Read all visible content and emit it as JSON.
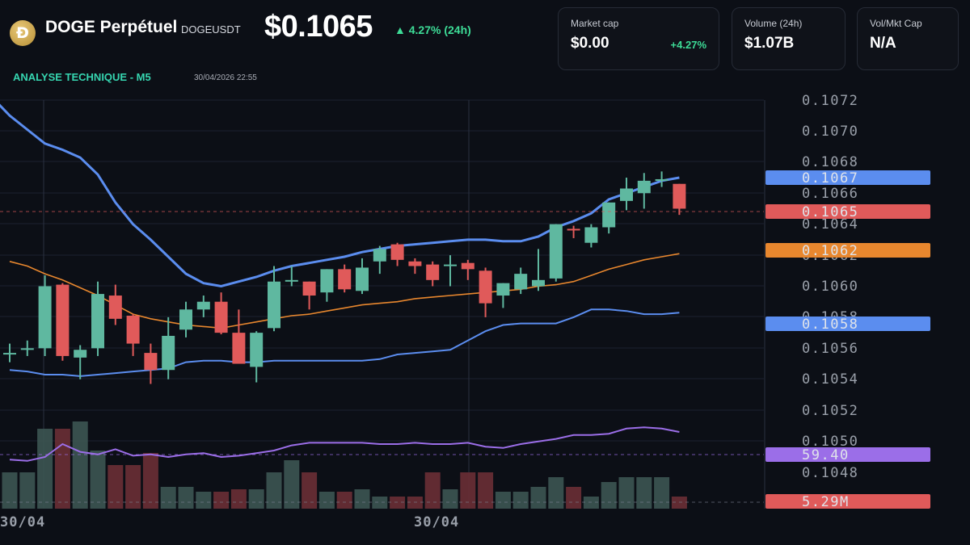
{
  "header": {
    "logo_glyph": "Đ",
    "pair_name": "DOGE Perpétuel",
    "ticker": "DOGEUSDT",
    "price": "$0.1065",
    "change": "▲ 4.27% (24h)"
  },
  "cards": [
    {
      "label": "Market cap",
      "value": "$0.00",
      "delta": "+4.27%"
    },
    {
      "label": "Volume (24h)",
      "value": "$1.07B"
    },
    {
      "label": "Vol/Mkt Cap",
      "value": "N/A"
    }
  ],
  "analysis": {
    "title": "ANALYSE TECHNIQUE - M5",
    "timestamp": "30/04/2026 22:55"
  },
  "colors": {
    "up": "#5fb8a0",
    "down": "#e05a5a",
    "bollinger": "#5b8def",
    "ma": "#e8872e",
    "rsi": "#9b6ee8",
    "accent_green": "#3ddc97"
  },
  "axis": {
    "price_ticks": [
      "0.1072",
      "0.1070",
      "0.1068",
      "0.1066",
      "0.1064",
      "0.1062",
      "0.1060",
      "0.1058",
      "0.1056",
      "0.1054",
      "0.1052",
      "0.1050",
      "0.1048"
    ],
    "date_labels": [
      "30/04",
      "30/04"
    ]
  },
  "tags": {
    "upper_band": "0.1067",
    "last_price": "0.1065",
    "ma": "0.1062",
    "lower_band": "0.1058",
    "rsi": "59.40",
    "volume": "5.29M"
  },
  "chart_data": {
    "type": "candlestick",
    "ylim": [
      0.1047,
      0.1073
    ],
    "candles": [
      {
        "o": 0.10557,
        "h": 0.10563,
        "l": 0.10551,
        "c": 0.10557
      },
      {
        "o": 0.10559,
        "h": 0.10565,
        "l": 0.10555,
        "c": 0.1056
      },
      {
        "o": 0.1056,
        "h": 0.10607,
        "l": 0.10555,
        "c": 0.106
      },
      {
        "o": 0.10601,
        "h": 0.10602,
        "l": 0.10552,
        "c": 0.10555
      },
      {
        "o": 0.10554,
        "h": 0.10562,
        "l": 0.1054,
        "c": 0.10559
      },
      {
        "o": 0.1056,
        "h": 0.10603,
        "l": 0.10555,
        "c": 0.10595
      },
      {
        "o": 0.10594,
        "h": 0.10601,
        "l": 0.10575,
        "c": 0.10579
      },
      {
        "o": 0.10581,
        "h": 0.10582,
        "l": 0.10555,
        "c": 0.10563
      },
      {
        "o": 0.10557,
        "h": 0.10563,
        "l": 0.10537,
        "c": 0.10546
      },
      {
        "o": 0.10546,
        "h": 0.1058,
        "l": 0.1054,
        "c": 0.10568
      },
      {
        "o": 0.10572,
        "h": 0.1059,
        "l": 0.10567,
        "c": 0.10585
      },
      {
        "o": 0.10585,
        "h": 0.10594,
        "l": 0.1058,
        "c": 0.1059
      },
      {
        "o": 0.1059,
        "h": 0.10596,
        "l": 0.10569,
        "c": 0.1057
      },
      {
        "o": 0.1057,
        "h": 0.10585,
        "l": 0.1055,
        "c": 0.1055
      },
      {
        "o": 0.10548,
        "h": 0.10571,
        "l": 0.10538,
        "c": 0.1057
      },
      {
        "o": 0.10573,
        "h": 0.10613,
        "l": 0.10571,
        "c": 0.10603
      },
      {
        "o": 0.10604,
        "h": 0.10613,
        "l": 0.106,
        "c": 0.10604
      },
      {
        "o": 0.10603,
        "h": 0.10603,
        "l": 0.10585,
        "c": 0.10594
      },
      {
        "o": 0.10596,
        "h": 0.10611,
        "l": 0.1059,
        "c": 0.10611
      },
      {
        "o": 0.10611,
        "h": 0.10614,
        "l": 0.10596,
        "c": 0.10598
      },
      {
        "o": 0.10597,
        "h": 0.10618,
        "l": 0.10595,
        "c": 0.10612
      },
      {
        "o": 0.10616,
        "h": 0.10626,
        "l": 0.10608,
        "c": 0.10624
      },
      {
        "o": 0.10627,
        "h": 0.10628,
        "l": 0.10613,
        "c": 0.10617
      },
      {
        "o": 0.10616,
        "h": 0.10618,
        "l": 0.10608,
        "c": 0.10613
      },
      {
        "o": 0.10614,
        "h": 0.10616,
        "l": 0.106,
        "c": 0.10604
      },
      {
        "o": 0.10613,
        "h": 0.1062,
        "l": 0.106,
        "c": 0.10614
      },
      {
        "o": 0.10615,
        "h": 0.10617,
        "l": 0.10604,
        "c": 0.10611
      },
      {
        "o": 0.1061,
        "h": 0.10612,
        "l": 0.1058,
        "c": 0.10589
      },
      {
        "o": 0.10594,
        "h": 0.10602,
        "l": 0.10586,
        "c": 0.10602
      },
      {
        "o": 0.10598,
        "h": 0.10612,
        "l": 0.10595,
        "c": 0.10608
      },
      {
        "o": 0.106,
        "h": 0.10624,
        "l": 0.10597,
        "c": 0.10604
      },
      {
        "o": 0.10605,
        "h": 0.1064,
        "l": 0.10603,
        "c": 0.1064
      },
      {
        "o": 0.10637,
        "h": 0.10639,
        "l": 0.10631,
        "c": 0.10636
      },
      {
        "o": 0.10628,
        "h": 0.1064,
        "l": 0.10625,
        "c": 0.10638
      },
      {
        "o": 0.10638,
        "h": 0.10654,
        "l": 0.10634,
        "c": 0.10654
      },
      {
        "o": 0.10655,
        "h": 0.1067,
        "l": 0.10649,
        "c": 0.10663
      },
      {
        "o": 0.1066,
        "h": 0.10673,
        "l": 0.1065,
        "c": 0.10668
      },
      {
        "o": 0.10669,
        "h": 0.10674,
        "l": 0.10664,
        "c": 0.10669
      },
      {
        "o": 0.10666,
        "h": 0.10666,
        "l": 0.10646,
        "c": 0.1065
      }
    ],
    "bollinger_upper": [
      0.1071,
      0.10701,
      0.10692,
      0.10688,
      0.10683,
      0.10672,
      0.10654,
      0.1064,
      0.1063,
      0.10619,
      0.10608,
      0.10602,
      0.106,
      0.10603,
      0.10606,
      0.1061,
      0.10613,
      0.10615,
      0.10617,
      0.10619,
      0.10622,
      0.10624,
      0.10626,
      0.10627,
      0.10628,
      0.10629,
      0.1063,
      0.1063,
      0.10629,
      0.10629,
      0.10632,
      0.10638,
      0.10642,
      0.10647,
      0.10656,
      0.1066,
      0.10664,
      0.10668,
      0.1067
    ],
    "bollinger_lower": [
      0.10546,
      0.10545,
      0.10543,
      0.10543,
      0.10542,
      0.10543,
      0.10544,
      0.10545,
      0.10546,
      0.10547,
      0.10551,
      0.10552,
      0.10552,
      0.10551,
      0.10551,
      0.10552,
      0.10552,
      0.10552,
      0.10552,
      0.10552,
      0.10552,
      0.10553,
      0.10556,
      0.10557,
      0.10558,
      0.10559,
      0.10565,
      0.10571,
      0.10575,
      0.10576,
      0.10576,
      0.10576,
      0.1058,
      0.10585,
      0.10585,
      0.10584,
      0.10582,
      0.10582,
      0.10583
    ],
    "ma": [
      0.10616,
      0.10613,
      0.10608,
      0.10604,
      0.10599,
      0.10594,
      0.10588,
      0.10582,
      0.10579,
      0.10577,
      0.10575,
      0.10574,
      0.10573,
      0.10575,
      0.10577,
      0.10579,
      0.10581,
      0.10582,
      0.10584,
      0.10586,
      0.10588,
      0.10589,
      0.1059,
      0.10592,
      0.10593,
      0.10594,
      0.10595,
      0.10596,
      0.10597,
      0.10598,
      0.106,
      0.10601,
      0.10603,
      0.10607,
      0.10611,
      0.10614,
      0.10617,
      0.10619,
      0.10621
    ],
    "rsi": [
      38,
      37,
      40,
      50,
      44,
      42,
      46,
      41,
      42,
      40,
      42,
      43,
      40,
      41,
      43,
      45,
      49,
      51,
      51,
      51,
      51,
      50,
      50,
      51,
      50,
      50,
      51,
      48,
      47,
      50,
      52,
      54,
      57,
      57,
      58,
      62,
      63,
      62,
      59.4
    ],
    "volume": [
      1.5,
      1.5,
      3.3,
      3.3,
      3.6,
      2.4,
      1.8,
      1.8,
      2.3,
      0.9,
      0.9,
      0.7,
      0.7,
      0.8,
      0.8,
      1.5,
      2.0,
      1.5,
      0.7,
      0.7,
      0.8,
      0.5,
      0.5,
      0.5,
      1.5,
      0.8,
      1.5,
      1.5,
      0.7,
      0.7,
      0.9,
      1.3,
      0.9,
      0.5,
      1.1,
      1.3,
      1.3,
      1.3,
      0.5
    ]
  }
}
